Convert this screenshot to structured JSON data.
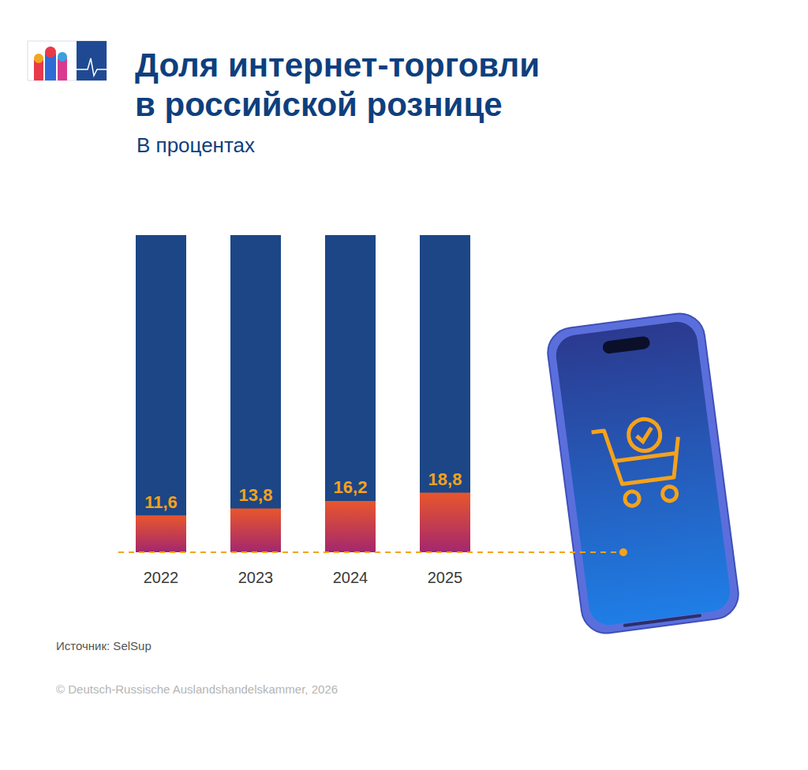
{
  "chart_data": {
    "type": "bar",
    "title": "Доля интернет-торговли\nв российской рознице",
    "subtitle": "В процентах",
    "source": "Источник: SelSup",
    "copyright": "© Deutsch-Russische Auslandshandelskammer, 2026",
    "categories": [
      "2022",
      "2023",
      "2024",
      "2025"
    ],
    "values": [
      11.6,
      13.8,
      16.2,
      18.8
    ],
    "value_labels": [
      "11,6",
      "13,8",
      "16,2",
      "18,8"
    ],
    "color": "#e8562c",
    "ylim": [
      0,
      100
    ],
    "grid": false,
    "data_labels": true,
    "tick_labels": "x"
  }
}
